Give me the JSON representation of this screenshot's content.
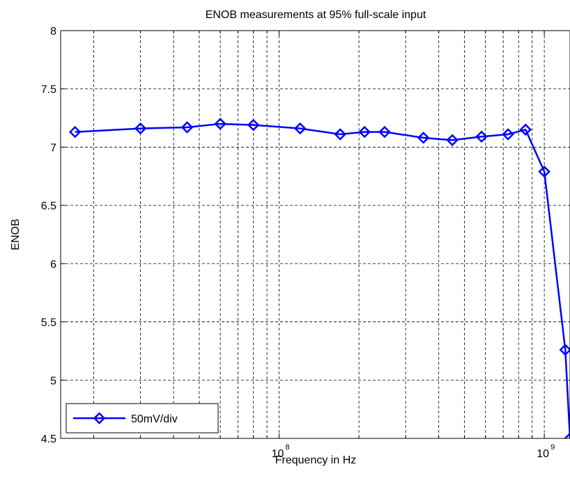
{
  "chart_data": {
    "type": "line",
    "title": "ENOB measurements at 95% full-scale input",
    "xlabel": "Frequency in Hz",
    "ylabel": "ENOB",
    "xscale": "log",
    "xlim": [
      15000000,
      1250000000
    ],
    "ylim": [
      4.5,
      8
    ],
    "grid": true,
    "legend_position": "bottom-left",
    "y_ticks": [
      "4.5",
      "5",
      "5.5",
      "6",
      "6.5",
      "7",
      "7.5",
      "8"
    ],
    "x_tick_labels": [
      {
        "value": 100000000,
        "base": "10",
        "exp": "8"
      },
      {
        "value": 1000000000,
        "base": "10",
        "exp": "9"
      }
    ],
    "series": [
      {
        "name": "50mV/div",
        "color": "#0000ff",
        "marker": "diamond",
        "x": [
          17000000,
          30000000,
          45000000,
          60000000,
          80000000,
          120000000,
          170000000,
          210000000,
          250000000,
          350000000,
          450000000,
          580000000,
          730000000,
          850000000,
          1000000000,
          1200000000,
          1250000000
        ],
        "y": [
          7.13,
          7.16,
          7.17,
          7.2,
          7.19,
          7.16,
          7.11,
          7.13,
          7.13,
          7.08,
          7.06,
          7.09,
          7.11,
          7.15,
          6.79,
          5.26,
          4.5
        ]
      }
    ]
  }
}
